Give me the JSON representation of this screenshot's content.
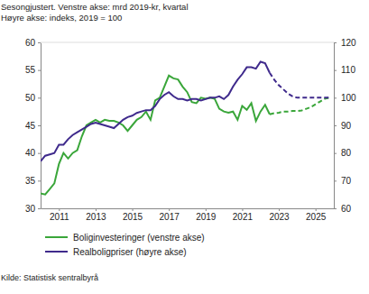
{
  "chart_data": {
    "type": "line",
    "title": "Sesongjustert. Venstre akse: mrd 2019-kr, kvartal",
    "subtitle": "Høyre akse: indeks, 2019 = 100",
    "source": "Kilde: Statistisk sentralbyrå",
    "x": [
      2010,
      2010.25,
      2010.5,
      2010.75,
      2011,
      2011.25,
      2011.5,
      2011.75,
      2012,
      2012.25,
      2012.5,
      2012.75,
      2013,
      2013.25,
      2013.5,
      2013.75,
      2014,
      2014.25,
      2014.5,
      2014.75,
      2015,
      2015.25,
      2015.5,
      2015.75,
      2016,
      2016.25,
      2016.5,
      2016.75,
      2017,
      2017.25,
      2017.5,
      2017.75,
      2018,
      2018.25,
      2018.5,
      2018.75,
      2019,
      2019.25,
      2019.5,
      2019.75,
      2020,
      2020.25,
      2020.5,
      2020.75,
      2021,
      2021.25,
      2021.5,
      2021.75,
      2022,
      2022.25,
      2022.5,
      2022.75,
      2023,
      2023.25,
      2023.5,
      2023.75,
      2024,
      2024.25,
      2024.5,
      2024.75,
      2025,
      2025.25,
      2025.5,
      2025.75
    ],
    "series": [
      {
        "name": "Boliginvesteringer (venstre akse)",
        "color": "#3aa63a",
        "line_style": "solid",
        "values": [
          32.7,
          32.5,
          33.5,
          34.5,
          38,
          40,
          39,
          40,
          40.5,
          43,
          45,
          45.5,
          46,
          45.5,
          46,
          45.8,
          45.8,
          45.5,
          45,
          44,
          45,
          46,
          46.5,
          47.5,
          46,
          49.5,
          50,
          52,
          54,
          53.5,
          53.3,
          52,
          51,
          49.2,
          49,
          50,
          49.8,
          50,
          49.8,
          48,
          47.5,
          47.3,
          47.5,
          46,
          48.5,
          47.8,
          49,
          45.8,
          47.5,
          48.7,
          47,
          null,
          null,
          null,
          null,
          null,
          null,
          null,
          null,
          null,
          null,
          null,
          null,
          null
        ]
      },
      {
        "name": "Realboligpriser (høyre akse)",
        "color": "#3f2a8c",
        "line_style": "solid",
        "axis": "y2",
        "values": [
          77,
          79,
          79.5,
          80,
          83,
          83,
          85,
          86.5,
          87.5,
          88.5,
          89.5,
          90.5,
          91,
          90.5,
          90,
          89.5,
          89,
          90.5,
          92,
          93,
          93.5,
          94.5,
          95,
          95.5,
          95.5,
          97,
          99.5,
          101,
          102,
          100.5,
          99.5,
          99.5,
          99,
          99.5,
          99.5,
          99,
          99.5,
          100,
          100,
          100.5,
          99.5,
          101,
          104,
          106.5,
          108.5,
          111,
          111,
          110.5,
          113,
          112.5,
          109,
          null,
          null,
          null,
          null,
          null,
          null,
          null,
          null,
          null,
          null,
          null,
          null,
          null
        ]
      },
      {
        "name": "Boliginvesteringer (venstre akse)",
        "color": "#3aa63a",
        "line_style": "dashed",
        "values": [
          null,
          null,
          null,
          null,
          null,
          null,
          null,
          null,
          null,
          null,
          null,
          null,
          null,
          null,
          null,
          null,
          null,
          null,
          null,
          null,
          null,
          null,
          null,
          null,
          null,
          null,
          null,
          null,
          null,
          null,
          null,
          null,
          null,
          null,
          null,
          null,
          null,
          null,
          null,
          null,
          null,
          null,
          null,
          null,
          null,
          null,
          null,
          null,
          null,
          null,
          47,
          47.2,
          47.3,
          47.5,
          47.5,
          47.6,
          47.6,
          47.7,
          48,
          48.3,
          48.8,
          49.3,
          49.8,
          50
        ]
      },
      {
        "name": "Realboligpriser (høyre akse)",
        "color": "#3f2a8c",
        "line_style": "dashed",
        "axis": "y2",
        "values": [
          null,
          null,
          null,
          null,
          null,
          null,
          null,
          null,
          null,
          null,
          null,
          null,
          null,
          null,
          null,
          null,
          null,
          null,
          null,
          null,
          null,
          null,
          null,
          null,
          null,
          null,
          null,
          null,
          null,
          null,
          null,
          null,
          null,
          null,
          null,
          null,
          null,
          null,
          null,
          null,
          null,
          null,
          null,
          null,
          null,
          null,
          null,
          null,
          null,
          null,
          109,
          106.5,
          104.5,
          103,
          101.5,
          100.5,
          100,
          100,
          100,
          100,
          100,
          100,
          100,
          100
        ]
      }
    ],
    "xlim": [
      2010,
      2026
    ],
    "xticks": [
      2011,
      2013,
      2015,
      2017,
      2019,
      2021,
      2023,
      2025
    ],
    "ylim": [
      30,
      60
    ],
    "yticks": [
      30,
      35,
      40,
      45,
      50,
      55,
      60
    ],
    "y2lim": [
      60,
      120
    ],
    "y2ticks": [
      60,
      70,
      80,
      90,
      100,
      110,
      120
    ],
    "grid": false
  }
}
